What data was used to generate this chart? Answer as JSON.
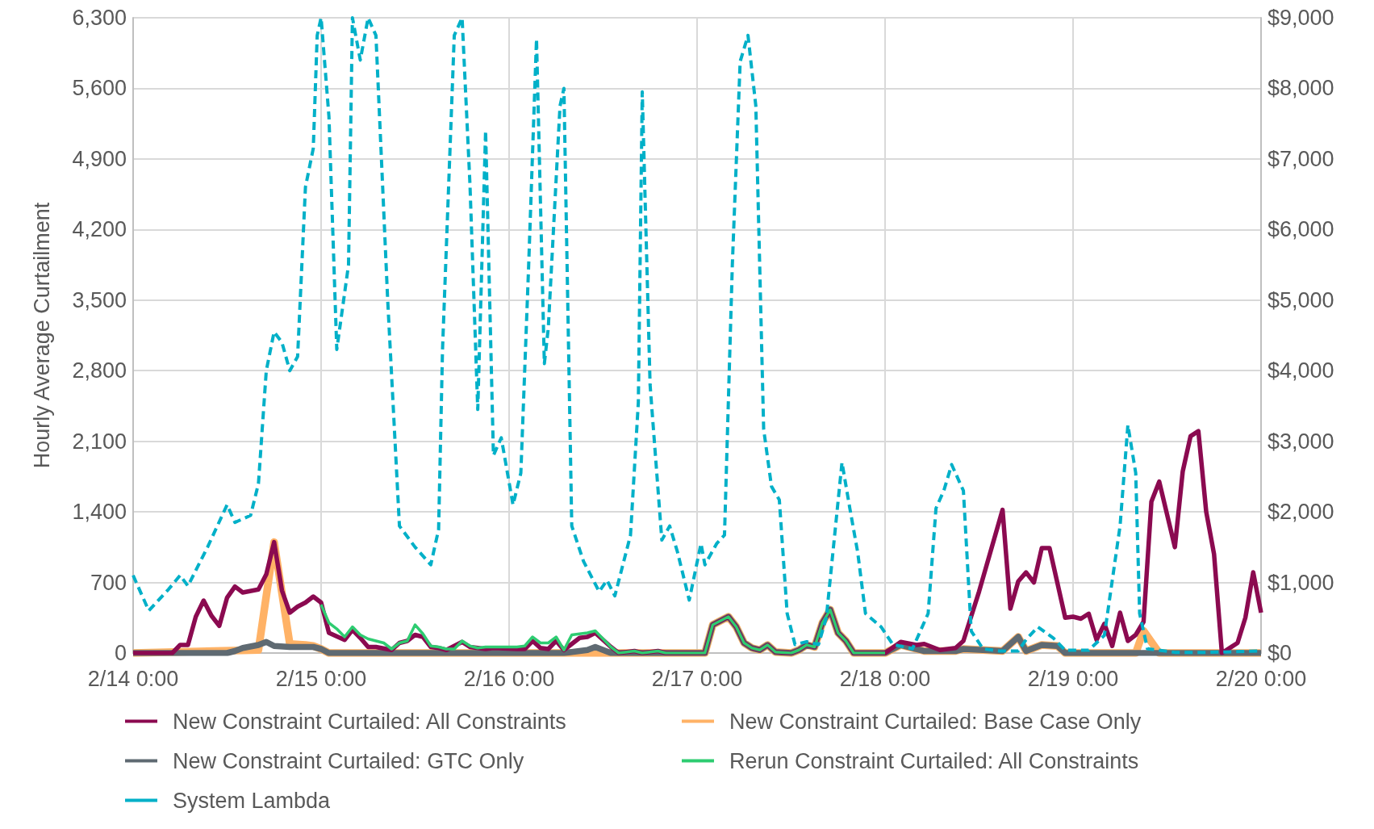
{
  "chart_data": {
    "type": "line",
    "ylabel": "Hourly Average Curtailment",
    "xlim": [
      "--02-14T00:00",
      "--02-20T00:00"
    ],
    "xticks": [
      {
        "value": "--02-14T00:00",
        "label": "2/14 0:00"
      },
      {
        "value": "--02-15T00:00",
        "label": "2/15 0:00"
      },
      {
        "value": "--02-16T00:00",
        "label": "2/16 0:00"
      },
      {
        "value": "--02-17T00:00",
        "label": "2/17 0:00"
      },
      {
        "value": "--02-18T00:00",
        "label": "2/18 0:00"
      },
      {
        "value": "--02-19T00:00",
        "label": "2/19 0:00"
      },
      {
        "value": "--02-20T00:00",
        "label": "2/20 0:00"
      }
    ],
    "ylim": [
      0,
      6300
    ],
    "yticks": [
      0,
      700,
      {
        "value": 1400,
        "label": "1,400"
      },
      {
        "value": 2100,
        "label": "2,100"
      },
      {
        "value": 2800,
        "label": "2,800"
      },
      {
        "value": 3500,
        "label": "3,500"
      },
      {
        "value": 4200,
        "label": "4,200"
      },
      {
        "value": 4900,
        "label": "4,900"
      },
      {
        "value": 5600,
        "label": "5,600"
      },
      {
        "value": 6300,
        "label": "6,300"
      }
    ],
    "y2lim": [
      0,
      9000
    ],
    "y2ticks": [
      {
        "value": 0,
        "label": "$0"
      },
      {
        "value": 1000,
        "label": "$1,000"
      },
      {
        "value": 2000,
        "label": "$2,000"
      },
      {
        "value": 3000,
        "label": "$3,000"
      },
      {
        "value": 4000,
        "label": "$4,000"
      },
      {
        "value": 5000,
        "label": "$5,000"
      },
      {
        "value": 6000,
        "label": "$6,000"
      },
      {
        "value": 7000,
        "label": "$7,000"
      },
      {
        "value": 8000,
        "label": "$8,000"
      },
      {
        "value": 9000,
        "label": "$9,000"
      }
    ],
    "grid": true,
    "legend": "bottom",
    "marker": "none",
    "series": [
      {
        "name": "New Constraint Curtailed: All Constraints",
        "color": "#8b0a50",
        "line_style": "solid",
        "x": [
          "--02-14T00:00",
          "--02-14T05:00",
          "--02-14T06:00",
          "--02-14T07:00",
          "--02-14T08:00",
          "--02-14T09:00",
          "--02-14T10:00",
          "--02-14T11:00",
          "--02-14T12:00",
          "--02-14T13:00",
          "--02-14T14:00",
          "--02-14T16:00",
          "--02-14T17:00",
          "--02-14T18:00",
          "--02-14T19:00",
          "--02-14T20:00",
          "--02-14T21:00",
          "--02-14T22:00",
          "--02-14T23:00",
          "--02-15T00:00",
          "--02-15T01:00",
          "--02-15T03:00",
          "--02-15T04:00",
          "--02-15T05:00",
          "--02-15T06:00",
          "--02-15T07:00",
          "--02-15T09:00",
          "--02-15T10:00",
          "--02-15T11:00",
          "--02-15T12:00",
          "--02-15T13:00",
          "--02-15T14:00",
          "--02-15T15:00",
          "--02-15T16:00",
          "--02-15T18:00",
          "--02-15T19:00",
          "--02-15T21:00",
          "--02-15T22:00",
          "--02-16T01:00",
          "--02-16T02:00",
          "--02-16T03:00",
          "--02-16T04:00",
          "--02-16T05:00",
          "--02-16T06:00",
          "--02-16T07:00",
          "--02-16T09:00",
          "--02-16T10:00",
          "--02-16T11:00",
          "--02-16T13:00",
          "--02-16T14:00",
          "--02-16T16:00",
          "--02-16T17:00",
          "--02-16T19:00",
          "--02-16T20:00",
          "--02-17T01:00",
          "--02-17T02:00",
          "--02-17T04:00",
          "--02-17T05:00",
          "--02-17T06:00",
          "--02-17T07:00",
          "--02-17T08:00",
          "--02-17T09:00",
          "--02-17T10:00",
          "--02-17T12:00",
          "--02-17T13:00",
          "--02-17T14:00",
          "--02-17T15:00",
          "--02-17T16:00",
          "--02-17T17:00",
          "--02-17T18:00",
          "--02-17T19:00",
          "--02-17T20:00",
          "--02-18T00:00",
          "--02-18T02:00",
          "--02-18T04:00",
          "--02-18T05:00",
          "--02-18T07:00",
          "--02-18T09:00",
          "--02-18T10:00",
          "--02-18T12:00",
          "--02-18T15:00",
          "--02-18T16:00",
          "--02-18T17:00",
          "--02-18T18:00",
          "--02-18T19:00",
          "--02-18T20:00",
          "--02-18T21:00",
          "--02-18T23:00",
          "--02-19T00:00",
          "--02-19T01:00",
          "--02-19T02:00",
          "--02-19T03:00",
          "--02-19T04:00",
          "--02-19T05:00",
          "--02-19T06:00",
          "--02-19T07:00",
          "--02-19T08:00",
          "--02-19T09:00",
          "--02-19T10:00",
          "--02-19T11:00",
          "--02-19T13:00",
          "--02-19T14:00",
          "--02-19T15:00",
          "--02-19T16:00",
          "--02-19T17:00",
          "--02-19T18:00",
          "--02-19T19:00",
          "--02-19T21:00",
          "--02-19T22:00",
          "--02-19T23:00",
          "--02-20T00:00"
        ],
        "values": [
          0,
          0,
          80,
          80,
          360,
          520,
          370,
          270,
          550,
          660,
          600,
          630,
          780,
          1100,
          620,
          400,
          460,
          500,
          560,
          500,
          200,
          130,
          230,
          150,
          60,
          60,
          30,
          100,
          120,
          180,
          160,
          60,
          50,
          30,
          110,
          60,
          40,
          50,
          40,
          40,
          120,
          50,
          40,
          120,
          30,
          150,
          160,
          200,
          60,
          0,
          20,
          0,
          20,
          0,
          0,
          280,
          360,
          260,
          100,
          50,
          30,
          80,
          10,
          0,
          30,
          80,
          60,
          300,
          430,
          200,
          120,
          0,
          0,
          110,
          80,
          90,
          30,
          50,
          120,
          610,
          1420,
          440,
          710,
          800,
          700,
          1040,
          1040,
          350,
          360,
          340,
          390,
          130,
          290,
          70,
          400,
          120,
          180,
          310,
          1500,
          1700,
          1050,
          1800,
          2150,
          2200,
          1400,
          980,
          0,
          100,
          350,
          800,
          400
        ]
      },
      {
        "name": "New Constraint Curtailed: Base Case Only",
        "color": "#ffb266",
        "line_style": "solid",
        "x": [
          "--02-14T00:00",
          "--02-14T16:00",
          "--02-14T18:00",
          "--02-14T20:00",
          "--02-14T22:00",
          "--02-14T23:00",
          "--02-15T00:00",
          "--02-15T01:00",
          "--02-17T01:00",
          "--02-17T02:00",
          "--02-17T04:00",
          "--02-17T05:00",
          "--02-17T06:00",
          "--02-17T07:00",
          "--02-17T08:00",
          "--02-17T09:00",
          "--02-17T10:00",
          "--02-17T12:00",
          "--02-17T13:00",
          "--02-17T14:00",
          "--02-17T15:00",
          "--02-17T16:00",
          "--02-17T17:00",
          "--02-17T18:00",
          "--02-17T19:00",
          "--02-17T20:00",
          "--02-18T00:00",
          "--02-18T02:00",
          "--02-18T05:00",
          "--02-18T09:00",
          "--02-18T10:00",
          "--02-18T15:00",
          "--02-18T17:00",
          "--02-18T18:00",
          "--02-18T20:00",
          "--02-18T22:00",
          "--02-18T23:00",
          "--02-19T08:00",
          "--02-19T09:00",
          "--02-19T11:00",
          "--02-20T00:00"
        ],
        "values": [
          0,
          30,
          1100,
          90,
          80,
          70,
          40,
          0,
          0,
          280,
          360,
          260,
          100,
          50,
          30,
          80,
          10,
          0,
          30,
          80,
          60,
          300,
          430,
          200,
          120,
          0,
          0,
          80,
          20,
          20,
          40,
          20,
          160,
          20,
          80,
          70,
          0,
          0,
          220,
          0,
          0
        ]
      },
      {
        "name": "New Constraint Curtailed: GTC Only",
        "color": "#5f6a72",
        "line_style": "solid",
        "x": [
          "--02-14T00:00",
          "--02-14T12:00",
          "--02-14T13:00",
          "--02-14T14:00",
          "--02-14T16:00",
          "--02-14T17:00",
          "--02-14T18:00",
          "--02-14T20:00",
          "--02-14T23:00",
          "--02-15T00:00",
          "--02-15T01:00",
          "--02-16T07:00",
          "--02-16T10:00",
          "--02-16T11:00",
          "--02-16T13:00",
          "--02-17T01:00",
          "--02-17T02:00",
          "--02-17T04:00",
          "--02-17T05:00",
          "--02-17T06:00",
          "--02-17T07:00",
          "--02-17T08:00",
          "--02-17T09:00",
          "--02-17T10:00",
          "--02-17T12:00",
          "--02-17T13:00",
          "--02-17T14:00",
          "--02-17T15:00",
          "--02-17T16:00",
          "--02-17T17:00",
          "--02-17T18:00",
          "--02-17T19:00",
          "--02-17T20:00",
          "--02-18T00:00",
          "--02-18T02:00",
          "--02-18T05:00",
          "--02-18T09:00",
          "--02-18T10:00",
          "--02-18T15:00",
          "--02-18T17:00",
          "--02-18T18:00",
          "--02-18T20:00",
          "--02-18T22:00",
          "--02-18T23:00",
          "--02-20T00:00"
        ],
        "values": [
          0,
          0,
          20,
          50,
          80,
          110,
          70,
          60,
          60,
          40,
          0,
          0,
          30,
          60,
          0,
          0,
          280,
          360,
          260,
          100,
          50,
          30,
          80,
          10,
          0,
          30,
          80,
          60,
          300,
          430,
          200,
          120,
          0,
          0,
          80,
          20,
          20,
          40,
          20,
          160,
          20,
          80,
          70,
          0,
          0
        ]
      },
      {
        "name": "Rerun Constraint Curtailed: All Constraints",
        "color": "#2ecc71",
        "line_style": "solid",
        "x": [
          "--02-15T00:00",
          "--02-15T01:00",
          "--02-15T02:00",
          "--02-15T03:00",
          "--02-15T04:00",
          "--02-15T05:00",
          "--02-15T06:00",
          "--02-15T07:00",
          "--02-15T08:00",
          "--02-15T09:00",
          "--02-15T10:00",
          "--02-15T11:00",
          "--02-15T12:00",
          "--02-15T13:00",
          "--02-15T14:00",
          "--02-15T15:00",
          "--02-15T16:00",
          "--02-15T17:00",
          "--02-15T18:00",
          "--02-15T19:00",
          "--02-15T20:00",
          "--02-15T21:00",
          "--02-15T22:00",
          "--02-16T01:00",
          "--02-16T02:00",
          "--02-16T03:00",
          "--02-16T04:00",
          "--02-16T05:00",
          "--02-16T06:00",
          "--02-16T07:00",
          "--02-16T08:00",
          "--02-16T10:00",
          "--02-16T11:00",
          "--02-16T13:00",
          "--02-16T14:00",
          "--02-16T16:00",
          "--02-16T17:00",
          "--02-16T19:00",
          "--02-16T20:00",
          "--02-17T01:00",
          "--02-17T02:00",
          "--02-17T04:00",
          "--02-17T05:00",
          "--02-17T06:00",
          "--02-17T07:00",
          "--02-17T08:00",
          "--02-17T09:00",
          "--02-17T10:00",
          "--02-17T12:00",
          "--02-17T13:00",
          "--02-17T14:00",
          "--02-17T15:00",
          "--02-17T16:00",
          "--02-17T17:00",
          "--02-17T18:00",
          "--02-17T19:00",
          "--02-17T20:00",
          "--02-18T00:00"
        ],
        "values": [
          480,
          300,
          240,
          160,
          260,
          180,
          140,
          120,
          100,
          40,
          100,
          120,
          280,
          190,
          70,
          60,
          40,
          40,
          120,
          70,
          50,
          60,
          60,
          60,
          70,
          160,
          100,
          100,
          160,
          30,
          180,
          200,
          220,
          60,
          0,
          20,
          0,
          20,
          0,
          0,
          280,
          360,
          260,
          100,
          50,
          30,
          80,
          10,
          0,
          30,
          80,
          60,
          300,
          430,
          200,
          120,
          0,
          0
        ]
      },
      {
        "name": "System Lambda",
        "color": "#00b0c8",
        "line_style": "dashed",
        "axis": "y2",
        "x": [
          "--02-14T00:00",
          "--02-14T02:00",
          "--02-14T04:30",
          "--02-14T06:00",
          "--02-14T07:00",
          "--02-14T09:30",
          "--02-14T12:00",
          "--02-14T13:00",
          "--02-14T15:00",
          "--02-14T16:00",
          "--02-14T17:00",
          "--02-14T18:00",
          "--02-14T19:00",
          "--02-14T20:00",
          "--02-14T21:00",
          "--02-14T22:00",
          "--02-14T23:00",
          "--02-14T23:30",
          "--02-15T00:00",
          "--02-15T01:00",
          "--02-15T02:00",
          "--02-15T03:30",
          "--02-15T04:00",
          "--02-15T05:00",
          "--02-15T06:00",
          "--02-15T07:00",
          "--02-15T08:30",
          "--02-15T10:00",
          "--02-15T12:00",
          "--02-15T14:00",
          "--02-15T15:00",
          "--02-15T15:30",
          "--02-15T17:00",
          "--02-15T18:00",
          "--02-15T19:00",
          "--02-15T20:00",
          "--02-15T21:00",
          "--02-15T22:00",
          "--02-15T23:00",
          "--02-16T00:30",
          "--02-16T01:30",
          "--02-16T02:30",
          "--02-16T03:30",
          "--02-16T04:30",
          "--02-16T05:00",
          "--02-16T06:30",
          "--02-16T07:00",
          "--02-16T08:00",
          "--02-16T09:30",
          "--02-16T11:30",
          "--02-16T12:30",
          "--02-16T13:30",
          "--02-16T15:30",
          "--02-16T16:30",
          "--02-16T17:00",
          "--02-16T18:00",
          "--02-16T19:30",
          "--02-16T20:30",
          "--02-16T21:30",
          "--02-16T23:00",
          "--02-17T00:30",
          "--02-17T01:00",
          "--02-17T02:30",
          "--02-17T03:30",
          "--02-17T04:30",
          "--02-17T05:30",
          "--02-17T06:30",
          "--02-17T07:30",
          "--02-17T08:30",
          "--02-17T09:30",
          "--02-17T10:30",
          "--02-17T11:30",
          "--02-17T12:30",
          "--02-17T14:00",
          "--02-17T15:30",
          "--02-17T16:30",
          "--02-17T18:30",
          "--02-17T19:30",
          "--02-17T20:30",
          "--02-17T21:30",
          "--02-17T23:30",
          "--02-18T01:00",
          "--02-18T03:30",
          "--02-18T05:30",
          "--02-18T06:30",
          "--02-18T07:30",
          "--02-18T08:30",
          "--02-18T10:00",
          "--02-18T11:00",
          "--02-18T12:30",
          "--02-18T14:30",
          "--02-18T17:00",
          "--02-18T18:00",
          "--02-18T19:30",
          "--02-18T21:30",
          "--02-18T23:00",
          "--02-19T02:00",
          "--02-19T04:00",
          "--02-19T06:00",
          "--02-19T07:00",
          "--02-19T08:00",
          "--02-19T08:30",
          "--02-19T09:30",
          "--02-19T13:00",
          "--02-19T17:30",
          "--02-20T00:00"
        ],
        "values": [
          1100,
          600,
          900,
          1100,
          950,
          1500,
          2100,
          1850,
          1950,
          2400,
          4000,
          4550,
          4400,
          4000,
          4200,
          6600,
          7150,
          8750,
          9000,
          7600,
          4300,
          5500,
          9000,
          8400,
          9000,
          8750,
          5000,
          1800,
          1500,
          1250,
          1750,
          4300,
          8750,
          9000,
          6650,
          3450,
          7400,
          2800,
          3050,
          2100,
          2550,
          5500,
          8700,
          4100,
          4600,
          7750,
          8000,
          1800,
          1300,
          870,
          1030,
          810,
          1670,
          3550,
          7950,
          3800,
          1600,
          1800,
          1430,
          750,
          1550,
          1250,
          1550,
          1670,
          5500,
          8380,
          8750,
          7750,
          3170,
          2360,
          2170,
          560,
          120,
          160,
          120,
          500,
          2700,
          2050,
          1430,
          560,
          370,
          120,
          60,
          560,
          2050,
          2300,
          2670,
          2300,
          310,
          60,
          30,
          30,
          190,
          370,
          210,
          40,
          40,
          250,
          1800,
          3230,
          2550,
          560,
          60,
          10,
          10,
          30
        ]
      }
    ]
  }
}
